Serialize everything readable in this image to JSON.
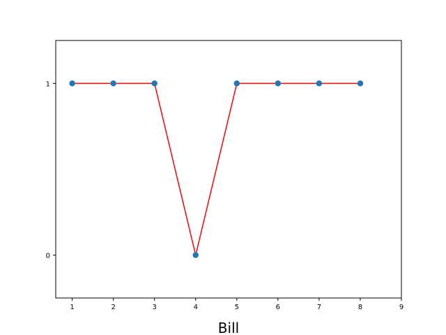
{
  "chart_data": {
    "type": "line",
    "title": "",
    "xlabel": "Bill",
    "ylabel": "",
    "x": [
      1,
      2,
      3,
      4,
      5,
      6,
      7,
      8
    ],
    "series": [
      {
        "values": [
          1,
          1,
          1,
          0,
          1,
          1,
          1,
          1
        ],
        "line_color": "#ff0000",
        "marker_color": "#1f77b4"
      }
    ],
    "xlim": [
      0.6,
      9
    ],
    "ylim": [
      -0.25,
      1.25
    ],
    "xticks": [
      1,
      2,
      3,
      4,
      5,
      6,
      7,
      8,
      9
    ],
    "xtick_labels": [
      "1",
      "2",
      "3",
      "4",
      "5",
      "6",
      "7",
      "8",
      "9"
    ],
    "yticks": [
      0,
      1
    ],
    "ytick_labels": [
      "0",
      "1"
    ],
    "grid": false,
    "legend": "none"
  }
}
